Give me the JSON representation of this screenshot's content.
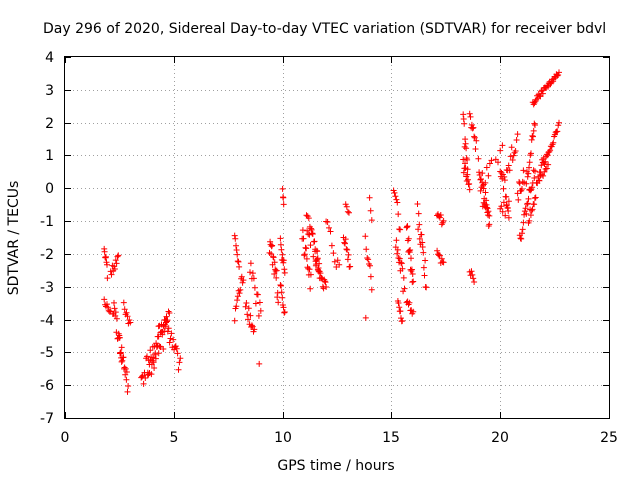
{
  "chart_data": {
    "type": "scatter",
    "title": "Day 296 of 2020, Sidereal Day-to-day VTEC variation (SDTVAR) for receiver bdvl",
    "xlabel": "GPS time / hours",
    "ylabel": "SDTVAR / TECUs",
    "xlim": [
      0,
      25
    ],
    "ylim": [
      -7,
      4
    ],
    "xticks": [
      0,
      5,
      10,
      15,
      20,
      25
    ],
    "yticks": [
      -7,
      -6,
      -5,
      -4,
      -3,
      -2,
      -1,
      0,
      1,
      2,
      3,
      4
    ],
    "grid": true,
    "marker": "+",
    "color": "#ff0000",
    "series": [
      {
        "name": "SDTVAR",
        "segments": [
          {
            "x0": 1.8,
            "x1": 1.95,
            "y0": -1.7,
            "y1": -2.6,
            "n": 8,
            "jitter": 0.15
          },
          {
            "x0": 2.1,
            "x1": 2.45,
            "y0": -2.6,
            "y1": -2.1,
            "n": 10,
            "jitter": 0.15
          },
          {
            "x0": 1.8,
            "x1": 2.1,
            "y0": -3.5,
            "y1": -3.8,
            "n": 8,
            "jitter": 0.15
          },
          {
            "x0": 2.2,
            "x1": 2.6,
            "y0": -3.6,
            "y1": -5.0,
            "n": 16,
            "jitter": 0.3
          },
          {
            "x0": 2.5,
            "x1": 2.9,
            "y0": -4.8,
            "y1": -6.0,
            "n": 16,
            "jitter": 0.3
          },
          {
            "x0": 2.7,
            "x1": 3.0,
            "y0": -3.6,
            "y1": -4.2,
            "n": 8,
            "jitter": 0.15
          },
          {
            "x0": 3.5,
            "x1": 4.3,
            "y0": -5.9,
            "y1": -4.6,
            "n": 22,
            "jitter": 0.35
          },
          {
            "x0": 3.8,
            "x1": 4.6,
            "y0": -5.8,
            "y1": -4.4,
            "n": 20,
            "jitter": 0.35
          },
          {
            "x0": 4.3,
            "x1": 4.8,
            "y0": -4.4,
            "y1": -3.9,
            "n": 12,
            "jitter": 0.2
          },
          {
            "x0": 4.6,
            "x1": 5.3,
            "y0": -4.0,
            "y1": -5.4,
            "n": 18,
            "jitter": 0.3
          },
          {
            "x0": 7.8,
            "x1": 8.0,
            "y0": -1.5,
            "y1": -2.4,
            "n": 8,
            "jitter": 0.1
          },
          {
            "x0": 7.8,
            "x1": 8.2,
            "y0": -3.8,
            "y1": -2.7,
            "n": 12,
            "jitter": 0.25
          },
          {
            "x0": 8.3,
            "x1": 8.7,
            "y0": -3.5,
            "y1": -4.5,
            "n": 12,
            "jitter": 0.3
          },
          {
            "x0": 8.5,
            "x1": 9.0,
            "y0": -2.4,
            "y1": -3.9,
            "n": 12,
            "jitter": 0.3
          },
          {
            "x0": 8.9,
            "x1": 8.95,
            "y0": -5.3,
            "y1": -5.4,
            "n": 1,
            "jitter": 0
          },
          {
            "x0": 9.4,
            "x1": 9.8,
            "y0": -1.6,
            "y1": -3.1,
            "n": 18,
            "jitter": 0.4
          },
          {
            "x0": 9.9,
            "x1": 10.1,
            "y0": -1.6,
            "y1": -2.6,
            "n": 10,
            "jitter": 0.25
          },
          {
            "x0": 10.0,
            "x1": 10.05,
            "y0": -0.1,
            "y1": -0.4,
            "n": 4,
            "jitter": 0.1
          },
          {
            "x0": 9.9,
            "x1": 10.1,
            "y0": -3.0,
            "y1": -3.8,
            "n": 8,
            "jitter": 0.15
          },
          {
            "x0": 10.9,
            "x1": 11.3,
            "y0": -1.4,
            "y1": -2.9,
            "n": 14,
            "jitter": 0.3
          },
          {
            "x0": 11.1,
            "x1": 11.7,
            "y0": -0.9,
            "y1": -2.6,
            "n": 24,
            "jitter": 0.35
          },
          {
            "x0": 11.5,
            "x1": 12.0,
            "y0": -2.0,
            "y1": -3.2,
            "n": 18,
            "jitter": 0.3
          },
          {
            "x0": 12.0,
            "x1": 12.6,
            "y0": -1.1,
            "y1": -2.6,
            "n": 10,
            "jitter": 0.3
          },
          {
            "x0": 12.9,
            "x1": 13.05,
            "y0": -0.5,
            "y1": -0.8,
            "n": 4,
            "jitter": 0.1
          },
          {
            "x0": 12.8,
            "x1": 13.1,
            "y0": -1.4,
            "y1": -2.4,
            "n": 10,
            "jitter": 0.2
          },
          {
            "x0": 13.8,
            "x1": 14.1,
            "y0": -1.6,
            "y1": -2.9,
            "n": 8,
            "jitter": 0.3
          },
          {
            "x0": 14.0,
            "x1": 14.1,
            "y0": -0.3,
            "y1": -1.0,
            "n": 3,
            "jitter": 0.1
          },
          {
            "x0": 13.8,
            "x1": 13.85,
            "y0": -3.9,
            "y1": -4.0,
            "n": 1,
            "jitter": 0
          },
          {
            "x0": 15.1,
            "x1": 15.4,
            "y0": 0.1,
            "y1": -1.2,
            "n": 8,
            "jitter": 0.3
          },
          {
            "x0": 15.2,
            "x1": 15.6,
            "y0": -1.8,
            "y1": -3.0,
            "n": 14,
            "jitter": 0.35
          },
          {
            "x0": 15.3,
            "x1": 15.5,
            "y0": -3.4,
            "y1": -4.1,
            "n": 8,
            "jitter": 0.15
          },
          {
            "x0": 15.7,
            "x1": 16.0,
            "y0": -1.2,
            "y1": -2.9,
            "n": 16,
            "jitter": 0.3
          },
          {
            "x0": 15.7,
            "x1": 16.0,
            "y0": -3.4,
            "y1": -3.8,
            "n": 8,
            "jitter": 0.1
          },
          {
            "x0": 16.2,
            "x1": 16.6,
            "y0": -0.8,
            "y1": -2.8,
            "n": 16,
            "jitter": 0.35
          },
          {
            "x0": 17.1,
            "x1": 17.4,
            "y0": -0.7,
            "y1": -1.1,
            "n": 8,
            "jitter": 0.15
          },
          {
            "x0": 17.1,
            "x1": 17.4,
            "y0": -2.0,
            "y1": -2.4,
            "n": 8,
            "jitter": 0.15
          },
          {
            "x0": 18.3,
            "x1": 18.5,
            "y0": 2.0,
            "y1": 0.6,
            "n": 10,
            "jitter": 0.3
          },
          {
            "x0": 18.3,
            "x1": 18.6,
            "y0": 0.7,
            "y1": -0.1,
            "n": 12,
            "jitter": 0.3
          },
          {
            "x0": 18.6,
            "x1": 18.9,
            "y0": 2.0,
            "y1": 1.2,
            "n": 10,
            "jitter": 0.3
          },
          {
            "x0": 18.6,
            "x1": 18.8,
            "y0": -2.5,
            "y1": -2.8,
            "n": 6,
            "jitter": 0.1
          },
          {
            "x0": 19.0,
            "x1": 19.5,
            "y0": 0.9,
            "y1": -1.0,
            "n": 18,
            "jitter": 0.35
          },
          {
            "x0": 19.1,
            "x1": 19.6,
            "y0": 0.1,
            "y1": 0.7,
            "n": 8,
            "jitter": 0.25
          },
          {
            "x0": 19.2,
            "x1": 19.5,
            "y0": -0.4,
            "y1": -0.9,
            "n": 8,
            "jitter": 0.25
          },
          {
            "x0": 19.8,
            "x1": 20.1,
            "y0": 0.8,
            "y1": 1.2,
            "n": 4,
            "jitter": 0.2
          },
          {
            "x0": 20.0,
            "x1": 20.4,
            "y0": 0.7,
            "y1": -0.5,
            "n": 14,
            "jitter": 0.3
          },
          {
            "x0": 20.0,
            "x1": 20.4,
            "y0": -0.5,
            "y1": -0.8,
            "n": 8,
            "jitter": 0.2
          },
          {
            "x0": 20.3,
            "x1": 20.8,
            "y0": 0.6,
            "y1": 1.5,
            "n": 12,
            "jitter": 0.3
          },
          {
            "x0": 20.8,
            "x1": 21.1,
            "y0": -0.2,
            "y1": 0.4,
            "n": 10,
            "jitter": 0.3
          },
          {
            "x0": 20.9,
            "x1": 21.6,
            "y0": -1.6,
            "y1": 0.6,
            "n": 22,
            "jitter": 0.2
          },
          {
            "x0": 21.2,
            "x1": 21.6,
            "y0": 0.2,
            "y1": 2.1,
            "n": 14,
            "jitter": 0.2
          },
          {
            "x0": 21.3,
            "x1": 22.0,
            "y0": -1.0,
            "y1": 0.9,
            "n": 20,
            "jitter": 0.2
          },
          {
            "x0": 21.5,
            "x1": 22.7,
            "y0": 2.6,
            "y1": 3.5,
            "n": 32,
            "jitter": 0.08
          },
          {
            "x0": 22.0,
            "x1": 22.7,
            "y0": 0.7,
            "y1": 1.9,
            "n": 20,
            "jitter": 0.1
          },
          {
            "x0": 21.8,
            "x1": 22.2,
            "y0": 0.3,
            "y1": 0.8,
            "n": 8,
            "jitter": 0.15
          }
        ]
      }
    ]
  }
}
